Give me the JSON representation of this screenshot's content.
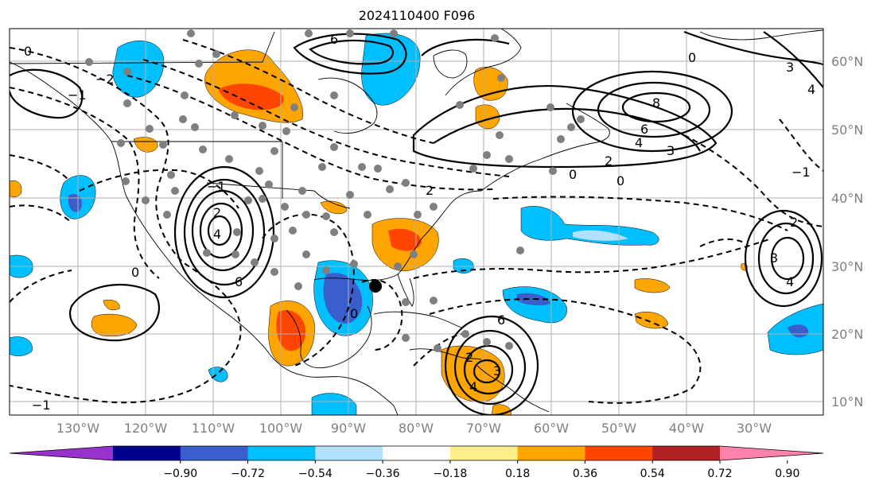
{
  "title": "2024110400 F096",
  "lat_labels": [
    "60°N",
    "50°N",
    "40°N",
    "30°N",
    "20°N",
    "10°N"
  ],
  "lon_labels": [
    "130°W",
    "120°W",
    "110°W",
    "100°W",
    "90°W",
    "80°W",
    "70°W",
    "60°W",
    "50°W",
    "40°W",
    "30°W"
  ],
  "colorbar": {
    "ticks": [
      "−0.90",
      "−0.72",
      "−0.54",
      "−0.36",
      "−0.18",
      "0.18",
      "0.36",
      "0.54",
      "0.72",
      "0.90"
    ],
    "colors": [
      "#9932cc",
      "#00008b",
      "#3a5fcd",
      "#00bfff",
      "#b0e2ff",
      "#ffffff",
      "#ffec8b",
      "#ffa500",
      "#ff4500",
      "#b22222",
      "#ff82ab"
    ]
  },
  "contour_labels": [
    "0",
    "−1",
    "−2",
    "6",
    "8",
    "6",
    "4",
    "3",
    "2",
    "0",
    "0",
    "2",
    "4",
    "6",
    "−1",
    "0",
    "2",
    "3",
    "4",
    "6",
    "0",
    "−1",
    "3",
    "4",
    "2",
    "−1",
    "2",
    "0",
    "3",
    "4"
  ]
}
